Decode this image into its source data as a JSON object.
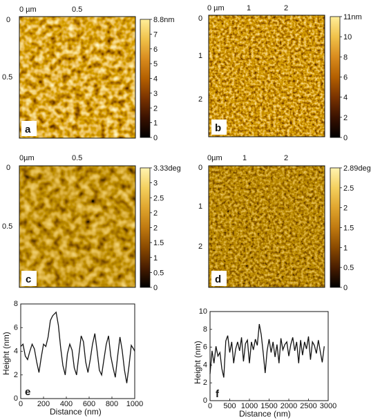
{
  "figure": {
    "panels": [
      {
        "id": "a",
        "label": "a",
        "kind": "height-map",
        "x_ticks": [
          "0 µm",
          "0.5"
        ],
        "y_ticks": [
          "0",
          "0.5"
        ],
        "colorbar": {
          "ticks": [
            "8.8nm",
            "7",
            "6",
            "5",
            "4",
            "3",
            "2",
            "1",
            "0"
          ]
        },
        "texture": {
          "scale": 6,
          "grain": 9,
          "contrast": 1.25,
          "seed": 11
        },
        "palette": "afm-brown"
      },
      {
        "id": "b",
        "label": "b",
        "kind": "height-map",
        "x_ticks": [
          "0 µm",
          "1",
          "2"
        ],
        "y_ticks": [
          "0",
          "1",
          "2"
        ],
        "colorbar": {
          "ticks": [
            "11nm",
            "10",
            "8",
            "6",
            "4",
            "2",
            "0"
          ]
        },
        "texture": {
          "scale": 3,
          "grain": 4,
          "contrast": 1.1,
          "seed": 23
        },
        "palette": "afm-brown"
      },
      {
        "id": "c",
        "label": "c",
        "kind": "phase-map",
        "x_ticks": [
          "0µm",
          "0.5"
        ],
        "y_ticks": [
          "0",
          "0.5"
        ],
        "colorbar": {
          "ticks": [
            "3.33deg",
            "3",
            "2.5",
            "2",
            "2",
            "1.5",
            "1",
            "0.5",
            "0"
          ]
        },
        "texture": {
          "scale": 6,
          "grain": 11,
          "contrast": 0.9,
          "seed": 37
        },
        "palette": "afm-gold"
      },
      {
        "id": "d",
        "label": "d",
        "kind": "phase-map",
        "x_ticks": [
          "0µm",
          "1",
          "2"
        ],
        "y_ticks": [
          "0",
          "1",
          "2"
        ],
        "colorbar": {
          "ticks": [
            "2.89deg",
            "2.5",
            "2",
            "1.5",
            "1",
            "0.5",
            "0"
          ]
        },
        "texture": {
          "scale": 3,
          "grain": 4,
          "contrast": 0.8,
          "seed": 53
        },
        "palette": "afm-gold"
      }
    ],
    "palettes": {
      "afm-brown": [
        "#000000",
        "#3a1200",
        "#7a3300",
        "#b46000",
        "#d98c1e",
        "#f0c24a",
        "#ffee99"
      ],
      "afm-gold": [
        "#000000",
        "#4a1e00",
        "#8a4a00",
        "#c07a10",
        "#e0a62e",
        "#f4d05e",
        "#fff4b0"
      ]
    }
  },
  "chart_data": [
    {
      "type": "line",
      "panel_label": "e",
      "xlabel": "Distance (nm)",
      "ylabel": "Height (nm)",
      "xlim": [
        0,
        1000
      ],
      "ylim": [
        0,
        8
      ],
      "x_ticks": [
        "0",
        "200",
        "400",
        "600",
        "800",
        "1000"
      ],
      "y_ticks": [
        "0",
        "2",
        "4",
        "6",
        "8"
      ],
      "series": [
        {
          "x": [
            0,
            20,
            40,
            60,
            80,
            100,
            120,
            140,
            160,
            180,
            200,
            220,
            240,
            260,
            280,
            300,
            310,
            330,
            350,
            370,
            390,
            410,
            430,
            450,
            470,
            490,
            510,
            530,
            550,
            570,
            590,
            610,
            630,
            650,
            670,
            690,
            710,
            730,
            750,
            770,
            790,
            810,
            830,
            850,
            870,
            890,
            910,
            930,
            950,
            970,
            990,
            1000
          ],
          "y": [
            4.4,
            4.6,
            3.6,
            3.3,
            4.0,
            4.6,
            4.2,
            3.1,
            2.2,
            3.5,
            4.6,
            4.4,
            5.2,
            6.6,
            7.0,
            7.2,
            7.3,
            6.2,
            4.3,
            2.8,
            2.0,
            3.8,
            4.6,
            4.1,
            2.6,
            2.0,
            3.7,
            5.3,
            4.8,
            3.1,
            2.2,
            3.3,
            4.6,
            5.5,
            4.0,
            2.4,
            2.0,
            3.3,
            4.6,
            5.3,
            3.6,
            2.6,
            1.8,
            3.6,
            5.2,
            4.1,
            2.4,
            1.3,
            2.8,
            4.5,
            4.2,
            4.0
          ]
        }
      ]
    },
    {
      "type": "line",
      "panel_label": "f",
      "xlabel": "Distance (nm)",
      "ylabel": "Height (nm)",
      "xlim": [
        0,
        3000
      ],
      "ylim": [
        0,
        10
      ],
      "x_ticks": [
        "0",
        "500",
        "1000",
        "1500",
        "2000",
        "2500",
        "3000"
      ],
      "y_ticks": [
        "0",
        "2",
        "4",
        "6",
        "8",
        "10"
      ],
      "series": [
        {
          "x": [
            0,
            50,
            100,
            150,
            200,
            250,
            300,
            350,
            400,
            450,
            500,
            550,
            600,
            650,
            700,
            750,
            800,
            850,
            900,
            950,
            1000,
            1050,
            1100,
            1150,
            1200,
            1250,
            1300,
            1350,
            1400,
            1450,
            1500,
            1550,
            1600,
            1650,
            1700,
            1750,
            1800,
            1850,
            1900,
            1950,
            2000,
            2050,
            2100,
            2150,
            2200,
            2250,
            2300,
            2350,
            2400,
            2450,
            2500,
            2550,
            2600,
            2650,
            2700,
            2750,
            2800,
            2850,
            2900
          ],
          "y": [
            3.0,
            5.6,
            4.2,
            6.1,
            5.0,
            5.4,
            3.6,
            2.6,
            6.7,
            7.3,
            5.4,
            6.6,
            4.2,
            5.8,
            6.6,
            5.6,
            7.1,
            4.4,
            6.4,
            6.8,
            4.2,
            6.6,
            5.7,
            6.9,
            6.2,
            8.6,
            7.4,
            5.4,
            3.1,
            5.6,
            6.9,
            5.4,
            6.6,
            4.9,
            6.3,
            4.2,
            7.0,
            5.7,
            6.3,
            6.6,
            5.0,
            6.3,
            7.1,
            5.6,
            6.6,
            4.2,
            6.8,
            5.1,
            6.6,
            5.8,
            7.2,
            4.6,
            6.6,
            6.2,
            5.3,
            6.8,
            5.5,
            4.3,
            6.1
          ]
        }
      ]
    }
  ]
}
